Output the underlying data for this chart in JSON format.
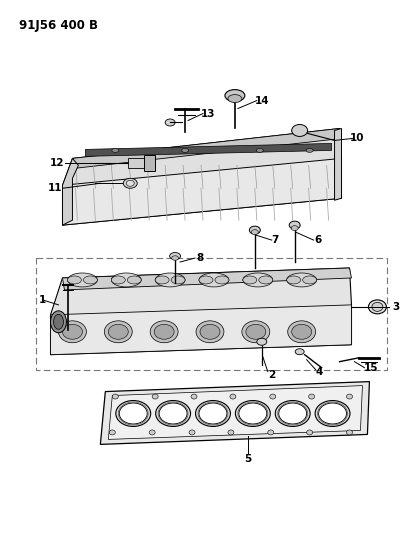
{
  "title": "91J56 400 B",
  "bg_color": "#ffffff",
  "fg_color": "#000000",
  "fig_width": 4.06,
  "fig_height": 5.33,
  "dpi": 100,
  "valve_cover": {
    "body_color": "#e8e8e8",
    "edge_color": "#222222",
    "ridge_color": "#cccccc",
    "fin_color": "#999999"
  },
  "cyl_head": {
    "body_color": "#e0e0e0",
    "edge_color": "#222222"
  },
  "gasket": {
    "body_color": "#e4e4e4",
    "edge_color": "#222222",
    "hole_color": "#ffffff"
  }
}
